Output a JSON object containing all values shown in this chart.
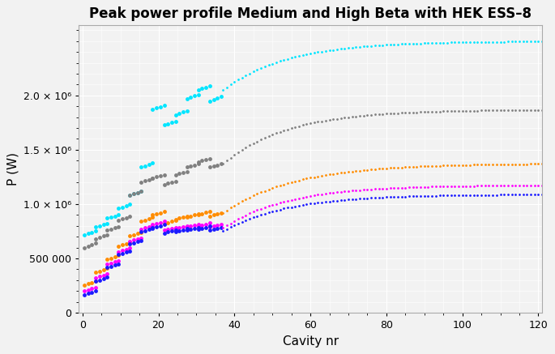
{
  "title": "Peak power profile Medium and High Beta with HEK ESS–8",
  "xlabel": "Cavity nr",
  "ylabel": "P (W)",
  "xlim": [
    -1,
    121
  ],
  "ylim": [
    0,
    2650000
  ],
  "background_color": "#f2f2f2",
  "grid_color": "#ffffff",
  "colors": {
    "cyan": "#00e5ff",
    "gray": "#808080",
    "orange": "#ff8c00",
    "magenta": "#ff00ff",
    "blue": "#1a1aff"
  },
  "yticks": [
    0,
    500000,
    1000000,
    1500000,
    2000000
  ],
  "xticks": [
    0,
    20,
    40,
    60,
    80,
    100,
    120
  ]
}
